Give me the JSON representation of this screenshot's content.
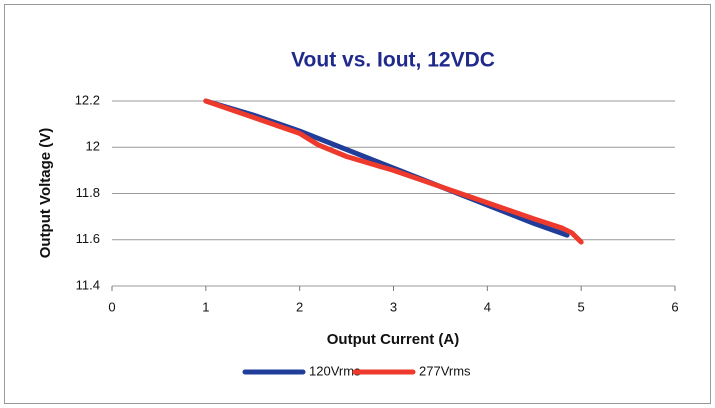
{
  "chart_data": {
    "type": "line",
    "title": "Vout vs. Iout, 12VDC",
    "xlabel": "Output Current (A)",
    "ylabel": "Output Voltage (V)",
    "xlim": [
      0,
      6
    ],
    "xticks": [
      0,
      1,
      2,
      3,
      4,
      5,
      6
    ],
    "ylim": [
      11.4,
      12.2
    ],
    "yticks": [
      12.2,
      12,
      11.8,
      11.6,
      11.4
    ],
    "grid": true,
    "legend": "bottom",
    "series": [
      {
        "name": "120Vrms",
        "color": "#1f3d99",
        "x": [
          1,
          1.5,
          2,
          2.5,
          3,
          3.5,
          4,
          4.5,
          4.85
        ],
        "values": [
          12.2,
          12.14,
          12.07,
          11.99,
          11.91,
          11.83,
          11.75,
          11.67,
          11.62
        ]
      },
      {
        "name": "277Vrms",
        "color": "#ee3a2c",
        "x": [
          1,
          1.5,
          2,
          2.2,
          2.5,
          3,
          3.5,
          4,
          4.5,
          4.8,
          4.9,
          5
        ],
        "values": [
          12.2,
          12.13,
          12.06,
          12.01,
          11.96,
          11.9,
          11.83,
          11.76,
          11.69,
          11.65,
          11.63,
          11.59
        ]
      }
    ]
  }
}
